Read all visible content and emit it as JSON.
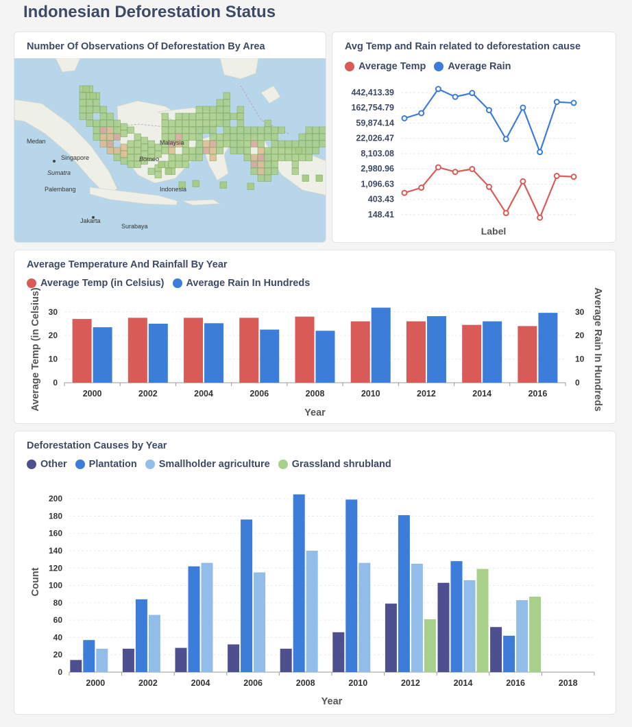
{
  "page": {
    "title": "Indonesian Deforestation Status"
  },
  "colors": {
    "temp": "#d95b57",
    "rain": "#3b7dd8",
    "other": "#4e4f8f",
    "plantation": "#3b7dd8",
    "smallholder": "#93bde9",
    "grassland": "#a9d08a",
    "title": "#3d4a66"
  },
  "map_card": {
    "title": "Number Of Observations Of Deforestation By Area",
    "labels": [
      "Medan",
      "Singapore",
      "Sumatra",
      "Palembang",
      "Jakarta",
      "Surabaya",
      "Borneo",
      "Indonesia",
      "Malaysia"
    ],
    "icon": "map-grid-heatmap"
  },
  "chart_data": [
    {
      "id": "avg-temp-rain-causes",
      "type": "line",
      "title": "Avg Temp and Rain related to deforestation cause",
      "xlabel": "Label",
      "ylabel": "",
      "yscale": "log",
      "yticks": [
        "442,413.39",
        "162,754.79",
        "59,874.14",
        "22,026.47",
        "8,103.08",
        "2,980.96",
        "1,096.63",
        "403.43",
        "148.41"
      ],
      "ytick_values": [
        442413.39,
        162754.79,
        59874.14,
        22026.47,
        8103.08,
        2980.96,
        1096.63,
        403.43,
        148.41
      ],
      "ylim": [
        148.41,
        442413.39
      ],
      "legend": "top-left",
      "series": [
        {
          "name": "Average Temp",
          "color": "#d95b57",
          "values": [
            620,
            870,
            3300,
            2450,
            2950,
            920,
            165,
            1320,
            122,
            1880,
            1780
          ]
        },
        {
          "name": "Average Rain",
          "color": "#3b7dd8",
          "values": [
            82000,
            115000,
            560000,
            335000,
            430000,
            140000,
            21000,
            165000,
            9000,
            240000,
            225000
          ]
        }
      ]
    },
    {
      "id": "temp-rain-by-year",
      "type": "bar",
      "title": "Average Temperature And Rainfall By Year",
      "xlabel": "Year",
      "ylabel": "Average Temp (in Celsius)",
      "y2label": "Average Rain In Hundreds",
      "categories": [
        "2000",
        "2002",
        "2004",
        "2006",
        "2008",
        "2010",
        "2012",
        "2014",
        "2016"
      ],
      "yticks": [
        0,
        10,
        20,
        30
      ],
      "ylim": [
        0,
        34
      ],
      "legend": "top-left",
      "series": [
        {
          "name": "Average Temp (in Celsius)",
          "color": "#d95b57",
          "values": [
            27,
            27.5,
            27.5,
            27.5,
            28,
            26,
            26,
            24.5,
            24
          ]
        },
        {
          "name": "Average Rain In Hundreds",
          "color": "#3b7dd8",
          "values": [
            23.5,
            25,
            25.2,
            22.5,
            22,
            31.8,
            28.2,
            26,
            29.6
          ]
        }
      ]
    },
    {
      "id": "causes-by-year",
      "type": "bar",
      "title": "Deforestation Causes by Year",
      "xlabel": "Year",
      "ylabel": "Count",
      "categories": [
        "2000",
        "2002",
        "2004",
        "2006",
        "2008",
        "2010",
        "2012",
        "2014",
        "2016",
        "2018"
      ],
      "yticks": [
        0,
        20,
        40,
        60,
        80,
        100,
        120,
        140,
        160,
        180,
        200
      ],
      "ylim": [
        0,
        208
      ],
      "legend": "top-left",
      "series": [
        {
          "name": "Other",
          "color": "#4e4f8f",
          "values": [
            14,
            27,
            28,
            32,
            27,
            46,
            79,
            103,
            52,
            null
          ]
        },
        {
          "name": "Plantation",
          "color": "#3b7dd8",
          "values": [
            37,
            84,
            122,
            176,
            205,
            199,
            181,
            128,
            42,
            null
          ]
        },
        {
          "name": "Smallholder agriculture",
          "color": "#93bde9",
          "values": [
            27,
            66,
            126,
            115,
            140,
            126,
            125,
            106,
            83,
            null
          ]
        },
        {
          "name": "Grassland shrubland",
          "color": "#a9d08a",
          "values": [
            null,
            null,
            null,
            null,
            null,
            null,
            61,
            119,
            87,
            null
          ]
        }
      ]
    }
  ]
}
